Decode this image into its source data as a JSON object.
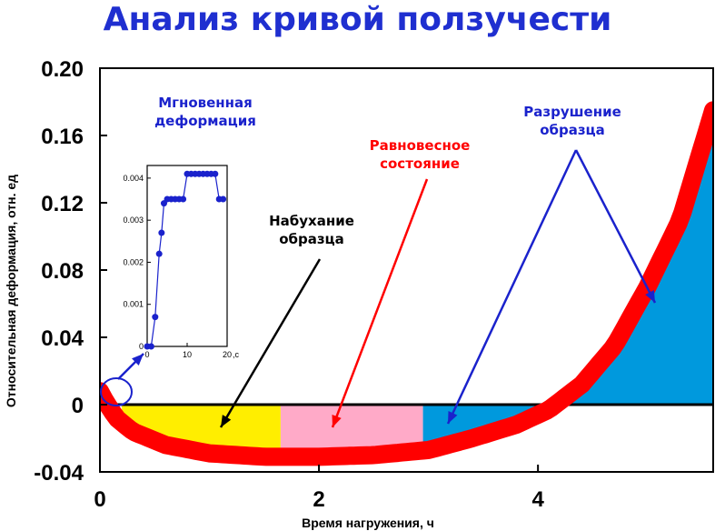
{
  "title": "Анализ кривой ползучести",
  "chart_data": [
    {
      "type": "area",
      "ylabel": "Относительная деформация, отн. ед",
      "xlabel": "Время нагружения, ч",
      "xlim": [
        0,
        5.6
      ],
      "ylim": [
        -0.04,
        0.2
      ],
      "xticks": [
        "0",
        "2",
        "4"
      ],
      "yticks": [
        "0.20",
        "0.16",
        "0.12",
        "0.08",
        "0.04",
        "0",
        "-0.04"
      ],
      "series": [
        {
          "x": [
            0,
            0.05,
            0.15,
            0.3,
            0.6,
            1.0,
            1.5,
            2.0,
            2.5,
            3.0,
            3.4,
            3.8,
            4.1,
            4.4,
            4.7,
            5.0,
            5.3,
            5.6
          ],
          "y": [
            0.008,
            0.002,
            -0.008,
            -0.016,
            -0.024,
            -0.029,
            -0.031,
            -0.031,
            -0.03,
            -0.027,
            -0.02,
            -0.012,
            -0.003,
            0.012,
            0.035,
            0.07,
            0.11,
            0.175
          ],
          "color": "#ff0000"
        }
      ],
      "regions": [
        {
          "x_from": 0.2,
          "x_to": 1.65,
          "color": "#ffee00"
        },
        {
          "x_from": 1.65,
          "x_to": 2.95,
          "color": "#ffaac8"
        },
        {
          "x_from": 2.95,
          "x_to": 5.6,
          "color": "#0099dd"
        }
      ],
      "annotations": [
        {
          "text": [
            "Набухание",
            "образца"
          ],
          "color": "#000000"
        },
        {
          "text": [
            "Равновесное",
            "состояние"
          ],
          "color": "#ff0000"
        },
        {
          "text": [
            "Разрушение",
            "образца"
          ],
          "color": "#1a22cc"
        },
        {
          "text": [
            "Мгновенная",
            "деформация"
          ],
          "color": "#1a22cc"
        }
      ]
    },
    {
      "type": "line",
      "xticks": [
        "0",
        "10",
        "20"
      ],
      "xunit": ",с",
      "yticks": [
        "0",
        "0.001",
        "0.002",
        "0.003",
        "0.004"
      ],
      "xlim": [
        0,
        20
      ],
      "ylim": [
        0,
        0.0043
      ],
      "series": [
        {
          "x": [
            0,
            1,
            2,
            3,
            3.6,
            4.2,
            5,
            6,
            7,
            8,
            9,
            10,
            11,
            12,
            13,
            14,
            15,
            16,
            17,
            18,
            19
          ],
          "y": [
            0,
            0,
            0.0007,
            0.0022,
            0.0027,
            0.0034,
            0.0035,
            0.0035,
            0.0035,
            0.0035,
            0.0035,
            0.0041,
            0.0041,
            0.0041,
            0.0041,
            0.0041,
            0.0041,
            0.0041,
            0.0041,
            0.0035,
            0.0035
          ],
          "color": "#1a22cc"
        }
      ]
    }
  ]
}
